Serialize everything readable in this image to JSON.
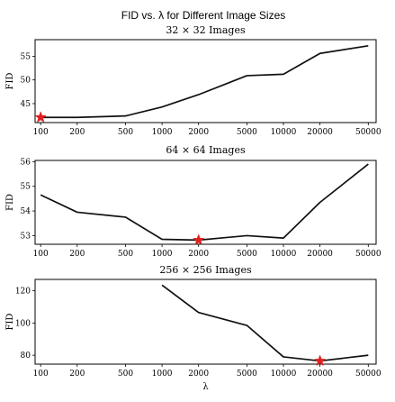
{
  "figure_title": "FID vs. λ for Different Image Sizes",
  "chart_data": [
    {
      "type": "line",
      "title": "32 × 32 Images",
      "xlabel": "",
      "ylabel": "FID",
      "x": [
        100,
        200,
        500,
        1000,
        2000,
        5000,
        10000,
        20000,
        50000
      ],
      "x_tick_labels": [
        "100",
        "200",
        "500",
        "1000",
        "2000",
        "5000",
        "10000",
        "20000",
        "50000"
      ],
      "x_scale": "log",
      "values": [
        42.1,
        42.1,
        42.4,
        44.3,
        46.9,
        50.9,
        51.2,
        55.6,
        57.2
      ],
      "ylim": [
        41.0,
        58.5
      ],
      "yticks": [
        45,
        50,
        55
      ],
      "marker": {
        "x": 100,
        "y": 42.1,
        "shape": "star",
        "color": "#e02020"
      },
      "line_color": "#111111"
    },
    {
      "type": "line",
      "title": "64 × 64 Images",
      "xlabel": "",
      "ylabel": "FID",
      "x": [
        100,
        200,
        500,
        1000,
        2000,
        5000,
        10000,
        20000,
        50000
      ],
      "x_tick_labels": [
        "100",
        "200",
        "500",
        "1000",
        "2000",
        "5000",
        "10000",
        "20000",
        "50000"
      ],
      "x_scale": "log",
      "values": [
        54.65,
        53.95,
        53.75,
        52.85,
        52.82,
        53.0,
        52.9,
        54.35,
        55.9
      ],
      "ylim": [
        52.65,
        56.05
      ],
      "yticks": [
        53,
        54,
        55,
        56
      ],
      "marker": {
        "x": 2000,
        "y": 52.82,
        "shape": "star",
        "color": "#e02020"
      },
      "line_color": "#111111"
    },
    {
      "type": "line",
      "title": "256 × 256 Images",
      "xlabel": "λ",
      "ylabel": "FID",
      "x": [
        1000,
        2000,
        5000,
        10000,
        20000,
        50000
      ],
      "x_tick_labels": [
        "100",
        "200",
        "500",
        "1000",
        "2000",
        "5000",
        "10000",
        "20000",
        "50000"
      ],
      "x_tick_values": [
        100,
        200,
        500,
        1000,
        2000,
        5000,
        10000,
        20000,
        50000
      ],
      "x_scale": "log",
      "values": [
        123.5,
        106.5,
        98.5,
        79.0,
        76.5,
        80.0
      ],
      "ylim": [
        74.5,
        127
      ],
      "yticks": [
        80,
        100,
        120
      ],
      "marker": {
        "x": 20000,
        "y": 76.5,
        "shape": "star",
        "color": "#e02020"
      },
      "line_color": "#111111"
    }
  ]
}
